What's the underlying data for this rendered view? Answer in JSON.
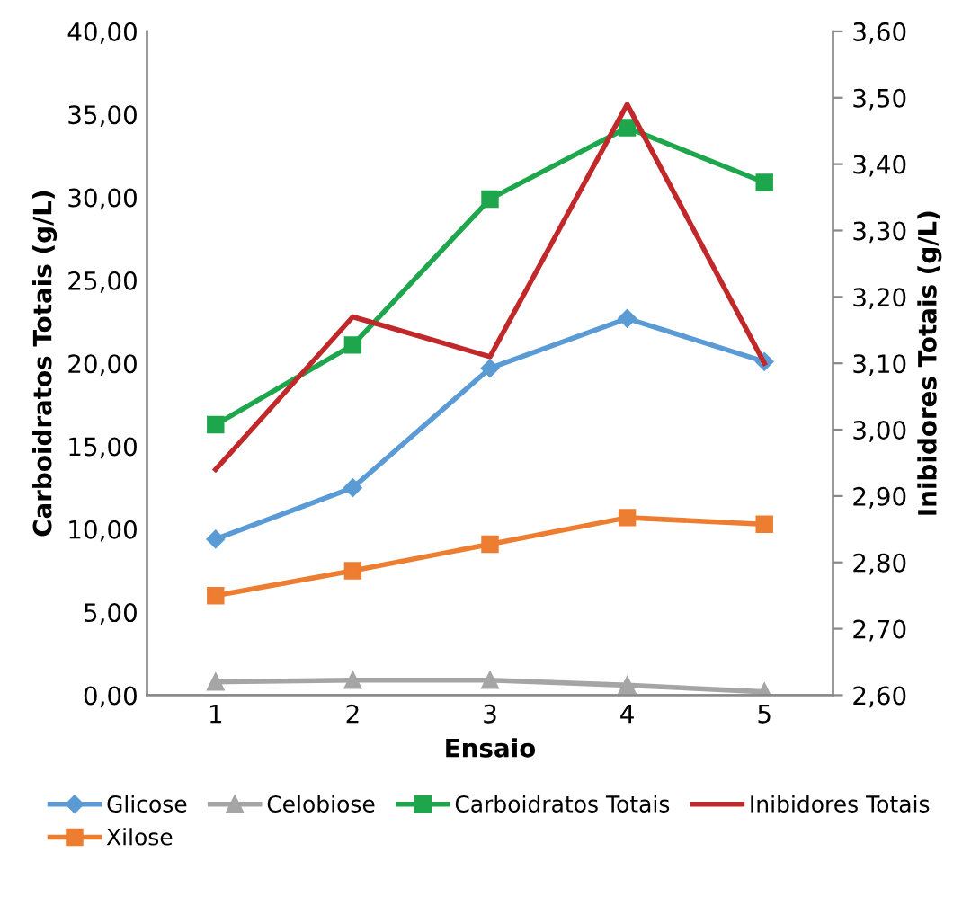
{
  "chart_data": {
    "type": "line",
    "xlabel": "Ensaio",
    "ylabel": "Carboidratos Totais (g/L)",
    "y2label": "Inibidores Totais (g/L)",
    "categories": [
      "1",
      "2",
      "3",
      "4",
      "5"
    ],
    "series": [
      {
        "name": "Glicose",
        "color": "#5b9bd5",
        "marker": "diamond",
        "values": [
          9.4,
          12.5,
          19.7,
          22.7,
          20.1
        ]
      },
      {
        "name": "Xilose",
        "color": "#ed7d31",
        "marker": "square",
        "values": [
          6.0,
          7.5,
          9.1,
          10.7,
          10.3
        ]
      },
      {
        "name": "Celobiose",
        "color": "#a5a5a5",
        "marker": "triangle",
        "values": [
          0.8,
          0.9,
          0.9,
          0.6,
          0.2
        ]
      },
      {
        "name": "Carboidratos Totais",
        "color": "#1ea64c",
        "marker": "square",
        "values": [
          16.3,
          21.1,
          29.9,
          34.2,
          30.9
        ]
      },
      {
        "name": "Inibidores Totais",
        "color": "#c0282a",
        "marker": "none",
        "axis": "y2",
        "values": [
          2.94,
          3.17,
          3.11,
          3.49,
          3.1
        ]
      }
    ],
    "ylim": [
      0,
      40
    ],
    "yticks": [
      {
        "value": 0,
        "label": "0,00"
      },
      {
        "value": 5,
        "label": "5,00"
      },
      {
        "value": 10,
        "label": "10,00"
      },
      {
        "value": 15,
        "label": "15,00"
      },
      {
        "value": 20,
        "label": "20,00"
      },
      {
        "value": 25,
        "label": "25,00"
      },
      {
        "value": 30,
        "label": "30,00"
      },
      {
        "value": 35,
        "label": "35,00"
      },
      {
        "value": 40,
        "label": "40,00"
      }
    ],
    "y2lim": [
      2.6,
      3.6
    ],
    "y2ticks": [
      {
        "value": 2.6,
        "label": "2,60"
      },
      {
        "value": 2.7,
        "label": "2,70"
      },
      {
        "value": 2.8,
        "label": "2,80"
      },
      {
        "value": 2.9,
        "label": "2,90"
      },
      {
        "value": 3.0,
        "label": "3,00"
      },
      {
        "value": 3.1,
        "label": "3,10"
      },
      {
        "value": 3.2,
        "label": "3,20"
      },
      {
        "value": 3.3,
        "label": "3,30"
      },
      {
        "value": 3.4,
        "label": "3,40"
      },
      {
        "value": 3.5,
        "label": "3,50"
      },
      {
        "value": 3.6,
        "label": "3,60"
      }
    ],
    "grid": false,
    "legend": "bottom"
  }
}
